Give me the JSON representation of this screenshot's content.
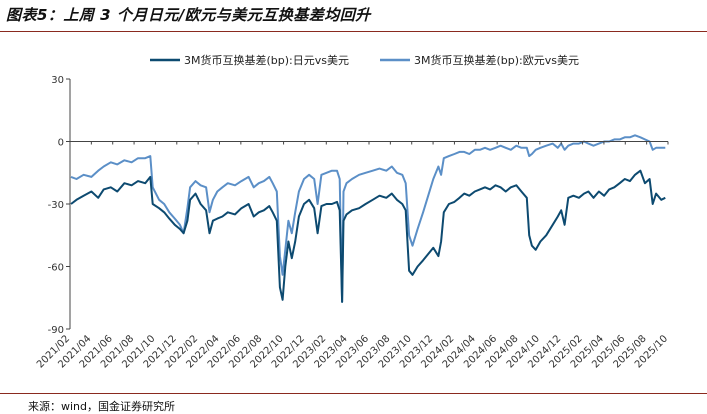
{
  "header": {
    "title": "图表5：上周 3 个月日元/欧元与美元互换基差均回升"
  },
  "footer": {
    "source": "来源：wind，国金证券研究所"
  },
  "colors": {
    "series_0": "#0d4a70",
    "series_1": "#5b8fc7",
    "rule": "#8a2a1f",
    "axis": "#444444"
  },
  "chart_data": {
    "type": "line",
    "ylim": [
      -90,
      30
    ],
    "yticks": [
      30,
      0,
      -30,
      -60,
      -90
    ],
    "xlim": [
      "2021-01-01",
      "2025-10-25"
    ],
    "xtick_labels": [
      "2021/02",
      "2021/04",
      "2021/06",
      "2021/08",
      "2021/10",
      "2021/12",
      "2022/02",
      "2022/04",
      "2022/06",
      "2022/08",
      "2022/10",
      "2022/12",
      "2023/02",
      "2023/04",
      "2023/06",
      "2023/08",
      "2023/10",
      "2023/12",
      "2024/02",
      "2024/04",
      "2024/06",
      "2024/08",
      "2024/10",
      "2024/12",
      "2025/02",
      "2025/04",
      "2025/06",
      "2025/08",
      "2025/10"
    ],
    "legend_position": "top",
    "series": [
      {
        "name": "3M货币互换基差(bp):日元vs美元",
        "points": [
          [
            "2021-01-04",
            -30
          ],
          [
            "2021-01-20",
            -28
          ],
          [
            "2021-02-10",
            -26
          ],
          [
            "2021-03-05",
            -24
          ],
          [
            "2021-03-25",
            -27
          ],
          [
            "2021-04-10",
            -23
          ],
          [
            "2021-05-01",
            -22
          ],
          [
            "2021-05-20",
            -24
          ],
          [
            "2021-06-10",
            -20
          ],
          [
            "2021-07-01",
            -21
          ],
          [
            "2021-07-20",
            -19
          ],
          [
            "2021-08-10",
            -20
          ],
          [
            "2021-08-25",
            -17
          ],
          [
            "2021-09-01",
            -30
          ],
          [
            "2021-09-20",
            -32
          ],
          [
            "2021-10-05",
            -34
          ],
          [
            "2021-10-20",
            -37
          ],
          [
            "2021-11-05",
            -40
          ],
          [
            "2021-11-20",
            -42
          ],
          [
            "2021-12-01",
            -44
          ],
          [
            "2021-12-12",
            -38
          ],
          [
            "2021-12-20",
            -28
          ],
          [
            "2022-01-05",
            -25
          ],
          [
            "2022-01-20",
            -30
          ],
          [
            "2022-02-05",
            -33
          ],
          [
            "2022-02-15",
            -44
          ],
          [
            "2022-02-25",
            -38
          ],
          [
            "2022-03-10",
            -37
          ],
          [
            "2022-03-25",
            -36
          ],
          [
            "2022-04-10",
            -34
          ],
          [
            "2022-05-01",
            -35
          ],
          [
            "2022-05-20",
            -32
          ],
          [
            "2022-06-10",
            -30
          ],
          [
            "2022-06-25",
            -36
          ],
          [
            "2022-07-10",
            -34
          ],
          [
            "2022-07-25",
            -33
          ],
          [
            "2022-08-10",
            -31
          ],
          [
            "2022-08-20",
            -34
          ],
          [
            "2022-09-01",
            -38
          ],
          [
            "2022-09-10",
            -70
          ],
          [
            "2022-09-18",
            -76
          ],
          [
            "2022-09-26",
            -60
          ],
          [
            "2022-10-05",
            -48
          ],
          [
            "2022-10-15",
            -56
          ],
          [
            "2022-10-25",
            -48
          ],
          [
            "2022-11-05",
            -36
          ],
          [
            "2022-11-20",
            -30
          ],
          [
            "2022-12-05",
            -28
          ],
          [
            "2022-12-20",
            -32
          ],
          [
            "2022-12-30",
            -44
          ],
          [
            "2023-01-10",
            -31
          ],
          [
            "2023-01-25",
            -30
          ],
          [
            "2023-02-10",
            -30
          ],
          [
            "2023-02-25",
            -29
          ],
          [
            "2023-03-05",
            -33
          ],
          [
            "2023-03-12",
            -77
          ],
          [
            "2023-03-16",
            -38
          ],
          [
            "2023-03-25",
            -35
          ],
          [
            "2023-04-10",
            -33
          ],
          [
            "2023-05-01",
            -32
          ],
          [
            "2023-05-20",
            -30
          ],
          [
            "2023-06-10",
            -28
          ],
          [
            "2023-06-30",
            -26
          ],
          [
            "2023-07-20",
            -27
          ],
          [
            "2023-08-05",
            -25
          ],
          [
            "2023-08-20",
            -28
          ],
          [
            "2023-09-05",
            -30
          ],
          [
            "2023-09-15",
            -33
          ],
          [
            "2023-09-25",
            -62
          ],
          [
            "2023-10-05",
            -64
          ],
          [
            "2023-10-20",
            -60
          ],
          [
            "2023-11-05",
            -57
          ],
          [
            "2023-11-20",
            -54
          ],
          [
            "2023-12-05",
            -51
          ],
          [
            "2023-12-20",
            -55
          ],
          [
            "2023-12-28",
            -48
          ],
          [
            "2024-01-05",
            -34
          ],
          [
            "2024-01-20",
            -30
          ],
          [
            "2024-02-05",
            -29
          ],
          [
            "2024-02-20",
            -27
          ],
          [
            "2024-03-05",
            -25
          ],
          [
            "2024-03-20",
            -26
          ],
          [
            "2024-04-05",
            -24
          ],
          [
            "2024-04-20",
            -23
          ],
          [
            "2024-05-05",
            -22
          ],
          [
            "2024-05-20",
            -23
          ],
          [
            "2024-06-05",
            -21
          ],
          [
            "2024-06-20",
            -22
          ],
          [
            "2024-07-05",
            -24
          ],
          [
            "2024-07-20",
            -22
          ],
          [
            "2024-08-05",
            -21
          ],
          [
            "2024-08-20",
            -24
          ],
          [
            "2024-09-05",
            -27
          ],
          [
            "2024-09-12",
            -45
          ],
          [
            "2024-09-20",
            -50
          ],
          [
            "2024-10-01",
            -52
          ],
          [
            "2024-10-15",
            -48
          ],
          [
            "2024-11-01",
            -45
          ],
          [
            "2024-11-20",
            -40
          ],
          [
            "2024-12-05",
            -36
          ],
          [
            "2024-12-15",
            -33
          ],
          [
            "2024-12-25",
            -40
          ],
          [
            "2025-01-05",
            -27
          ],
          [
            "2025-01-20",
            -26
          ],
          [
            "2025-02-05",
            -27
          ],
          [
            "2025-02-20",
            -25
          ],
          [
            "2025-03-05",
            -24
          ],
          [
            "2025-03-20",
            -27
          ],
          [
            "2025-04-05",
            -24
          ],
          [
            "2025-04-20",
            -26
          ],
          [
            "2025-05-05",
            -23
          ],
          [
            "2025-05-20",
            -22
          ],
          [
            "2025-06-05",
            -20
          ],
          [
            "2025-06-20",
            -18
          ],
          [
            "2025-07-05",
            -19
          ],
          [
            "2025-07-20",
            -16
          ],
          [
            "2025-08-05",
            -14
          ],
          [
            "2025-08-18",
            -20
          ],
          [
            "2025-09-01",
            -18
          ],
          [
            "2025-09-10",
            -30
          ],
          [
            "2025-09-20",
            -25
          ],
          [
            "2025-10-05",
            -28
          ],
          [
            "2025-10-17",
            -27
          ]
        ]
      },
      {
        "name": "3M货币互换基差(bp):欧元vs美元",
        "points": [
          [
            "2021-01-04",
            -17
          ],
          [
            "2021-01-20",
            -18
          ],
          [
            "2021-02-10",
            -16
          ],
          [
            "2021-03-05",
            -17
          ],
          [
            "2021-03-25",
            -14
          ],
          [
            "2021-04-10",
            -12
          ],
          [
            "2021-05-01",
            -10
          ],
          [
            "2021-05-20",
            -11
          ],
          [
            "2021-06-10",
            -9
          ],
          [
            "2021-07-01",
            -10
          ],
          [
            "2021-07-20",
            -8
          ],
          [
            "2021-08-10",
            -8
          ],
          [
            "2021-08-25",
            -7
          ],
          [
            "2021-09-01",
            -22
          ],
          [
            "2021-09-20",
            -28
          ],
          [
            "2021-10-05",
            -30
          ],
          [
            "2021-10-20",
            -34
          ],
          [
            "2021-11-05",
            -37
          ],
          [
            "2021-11-20",
            -40
          ],
          [
            "2021-12-01",
            -44
          ],
          [
            "2021-12-12",
            -32
          ],
          [
            "2021-12-20",
            -22
          ],
          [
            "2022-01-05",
            -19
          ],
          [
            "2022-01-20",
            -21
          ],
          [
            "2022-02-05",
            -22
          ],
          [
            "2022-02-15",
            -34
          ],
          [
            "2022-02-25",
            -28
          ],
          [
            "2022-03-10",
            -24
          ],
          [
            "2022-03-25",
            -22
          ],
          [
            "2022-04-10",
            -20
          ],
          [
            "2022-05-01",
            -21
          ],
          [
            "2022-05-20",
            -19
          ],
          [
            "2022-06-10",
            -17
          ],
          [
            "2022-06-25",
            -22
          ],
          [
            "2022-07-10",
            -20
          ],
          [
            "2022-07-25",
            -19
          ],
          [
            "2022-08-10",
            -17
          ],
          [
            "2022-08-20",
            -20
          ],
          [
            "2022-09-01",
            -24
          ],
          [
            "2022-09-10",
            -55
          ],
          [
            "2022-09-18",
            -64
          ],
          [
            "2022-09-26",
            -52
          ],
          [
            "2022-10-05",
            -38
          ],
          [
            "2022-10-15",
            -44
          ],
          [
            "2022-10-25",
            -34
          ],
          [
            "2022-11-05",
            -24
          ],
          [
            "2022-11-20",
            -18
          ],
          [
            "2022-12-05",
            -16
          ],
          [
            "2022-12-20",
            -18
          ],
          [
            "2022-12-30",
            -30
          ],
          [
            "2023-01-10",
            -16
          ],
          [
            "2023-01-25",
            -15
          ],
          [
            "2023-02-10",
            -14
          ],
          [
            "2023-02-25",
            -14
          ],
          [
            "2023-03-05",
            -18
          ],
          [
            "2023-03-12",
            -77
          ],
          [
            "2023-03-16",
            -24
          ],
          [
            "2023-03-25",
            -20
          ],
          [
            "2023-04-10",
            -18
          ],
          [
            "2023-05-01",
            -16
          ],
          [
            "2023-05-20",
            -15
          ],
          [
            "2023-06-10",
            -14
          ],
          [
            "2023-06-30",
            -13
          ],
          [
            "2023-07-20",
            -14
          ],
          [
            "2023-08-05",
            -12
          ],
          [
            "2023-08-20",
            -15
          ],
          [
            "2023-09-05",
            -16
          ],
          [
            "2023-09-15",
            -20
          ],
          [
            "2023-09-25",
            -45
          ],
          [
            "2023-10-05",
            -50
          ],
          [
            "2023-10-20",
            -42
          ],
          [
            "2023-11-05",
            -34
          ],
          [
            "2023-11-20",
            -26
          ],
          [
            "2023-12-05",
            -18
          ],
          [
            "2023-12-20",
            -12
          ],
          [
            "2023-12-28",
            -16
          ],
          [
            "2024-01-05",
            -8
          ],
          [
            "2024-01-20",
            -7
          ],
          [
            "2024-02-05",
            -6
          ],
          [
            "2024-02-20",
            -5
          ],
          [
            "2024-03-05",
            -5
          ],
          [
            "2024-03-20",
            -6
          ],
          [
            "2024-04-05",
            -4
          ],
          [
            "2024-04-20",
            -4
          ],
          [
            "2024-05-05",
            -3
          ],
          [
            "2024-05-20",
            -4
          ],
          [
            "2024-06-05",
            -3
          ],
          [
            "2024-06-20",
            -2
          ],
          [
            "2024-07-05",
            -3
          ],
          [
            "2024-07-20",
            -4
          ],
          [
            "2024-08-05",
            -2
          ],
          [
            "2024-08-20",
            -3
          ],
          [
            "2024-09-05",
            -3
          ],
          [
            "2024-09-12",
            -7
          ],
          [
            "2024-09-20",
            -6
          ],
          [
            "2024-10-01",
            -4
          ],
          [
            "2024-10-15",
            -3
          ],
          [
            "2024-11-01",
            -2
          ],
          [
            "2024-11-20",
            -1
          ],
          [
            "2024-12-05",
            -3
          ],
          [
            "2024-12-15",
            -1
          ],
          [
            "2024-12-25",
            -4
          ],
          [
            "2025-01-05",
            -2
          ],
          [
            "2025-01-20",
            -1
          ],
          [
            "2025-02-05",
            -1
          ],
          [
            "2025-02-20",
            0
          ],
          [
            "2025-03-05",
            -1
          ],
          [
            "2025-03-20",
            -2
          ],
          [
            "2025-04-05",
            -1
          ],
          [
            "2025-04-20",
            0
          ],
          [
            "2025-05-05",
            0
          ],
          [
            "2025-05-20",
            1
          ],
          [
            "2025-06-05",
            1
          ],
          [
            "2025-06-20",
            2
          ],
          [
            "2025-07-05",
            2
          ],
          [
            "2025-07-20",
            3
          ],
          [
            "2025-08-05",
            2
          ],
          [
            "2025-08-18",
            1
          ],
          [
            "2025-09-01",
            0
          ],
          [
            "2025-09-10",
            -4
          ],
          [
            "2025-09-20",
            -3
          ],
          [
            "2025-10-05",
            -3
          ],
          [
            "2025-10-17",
            -3
          ]
        ]
      }
    ]
  }
}
